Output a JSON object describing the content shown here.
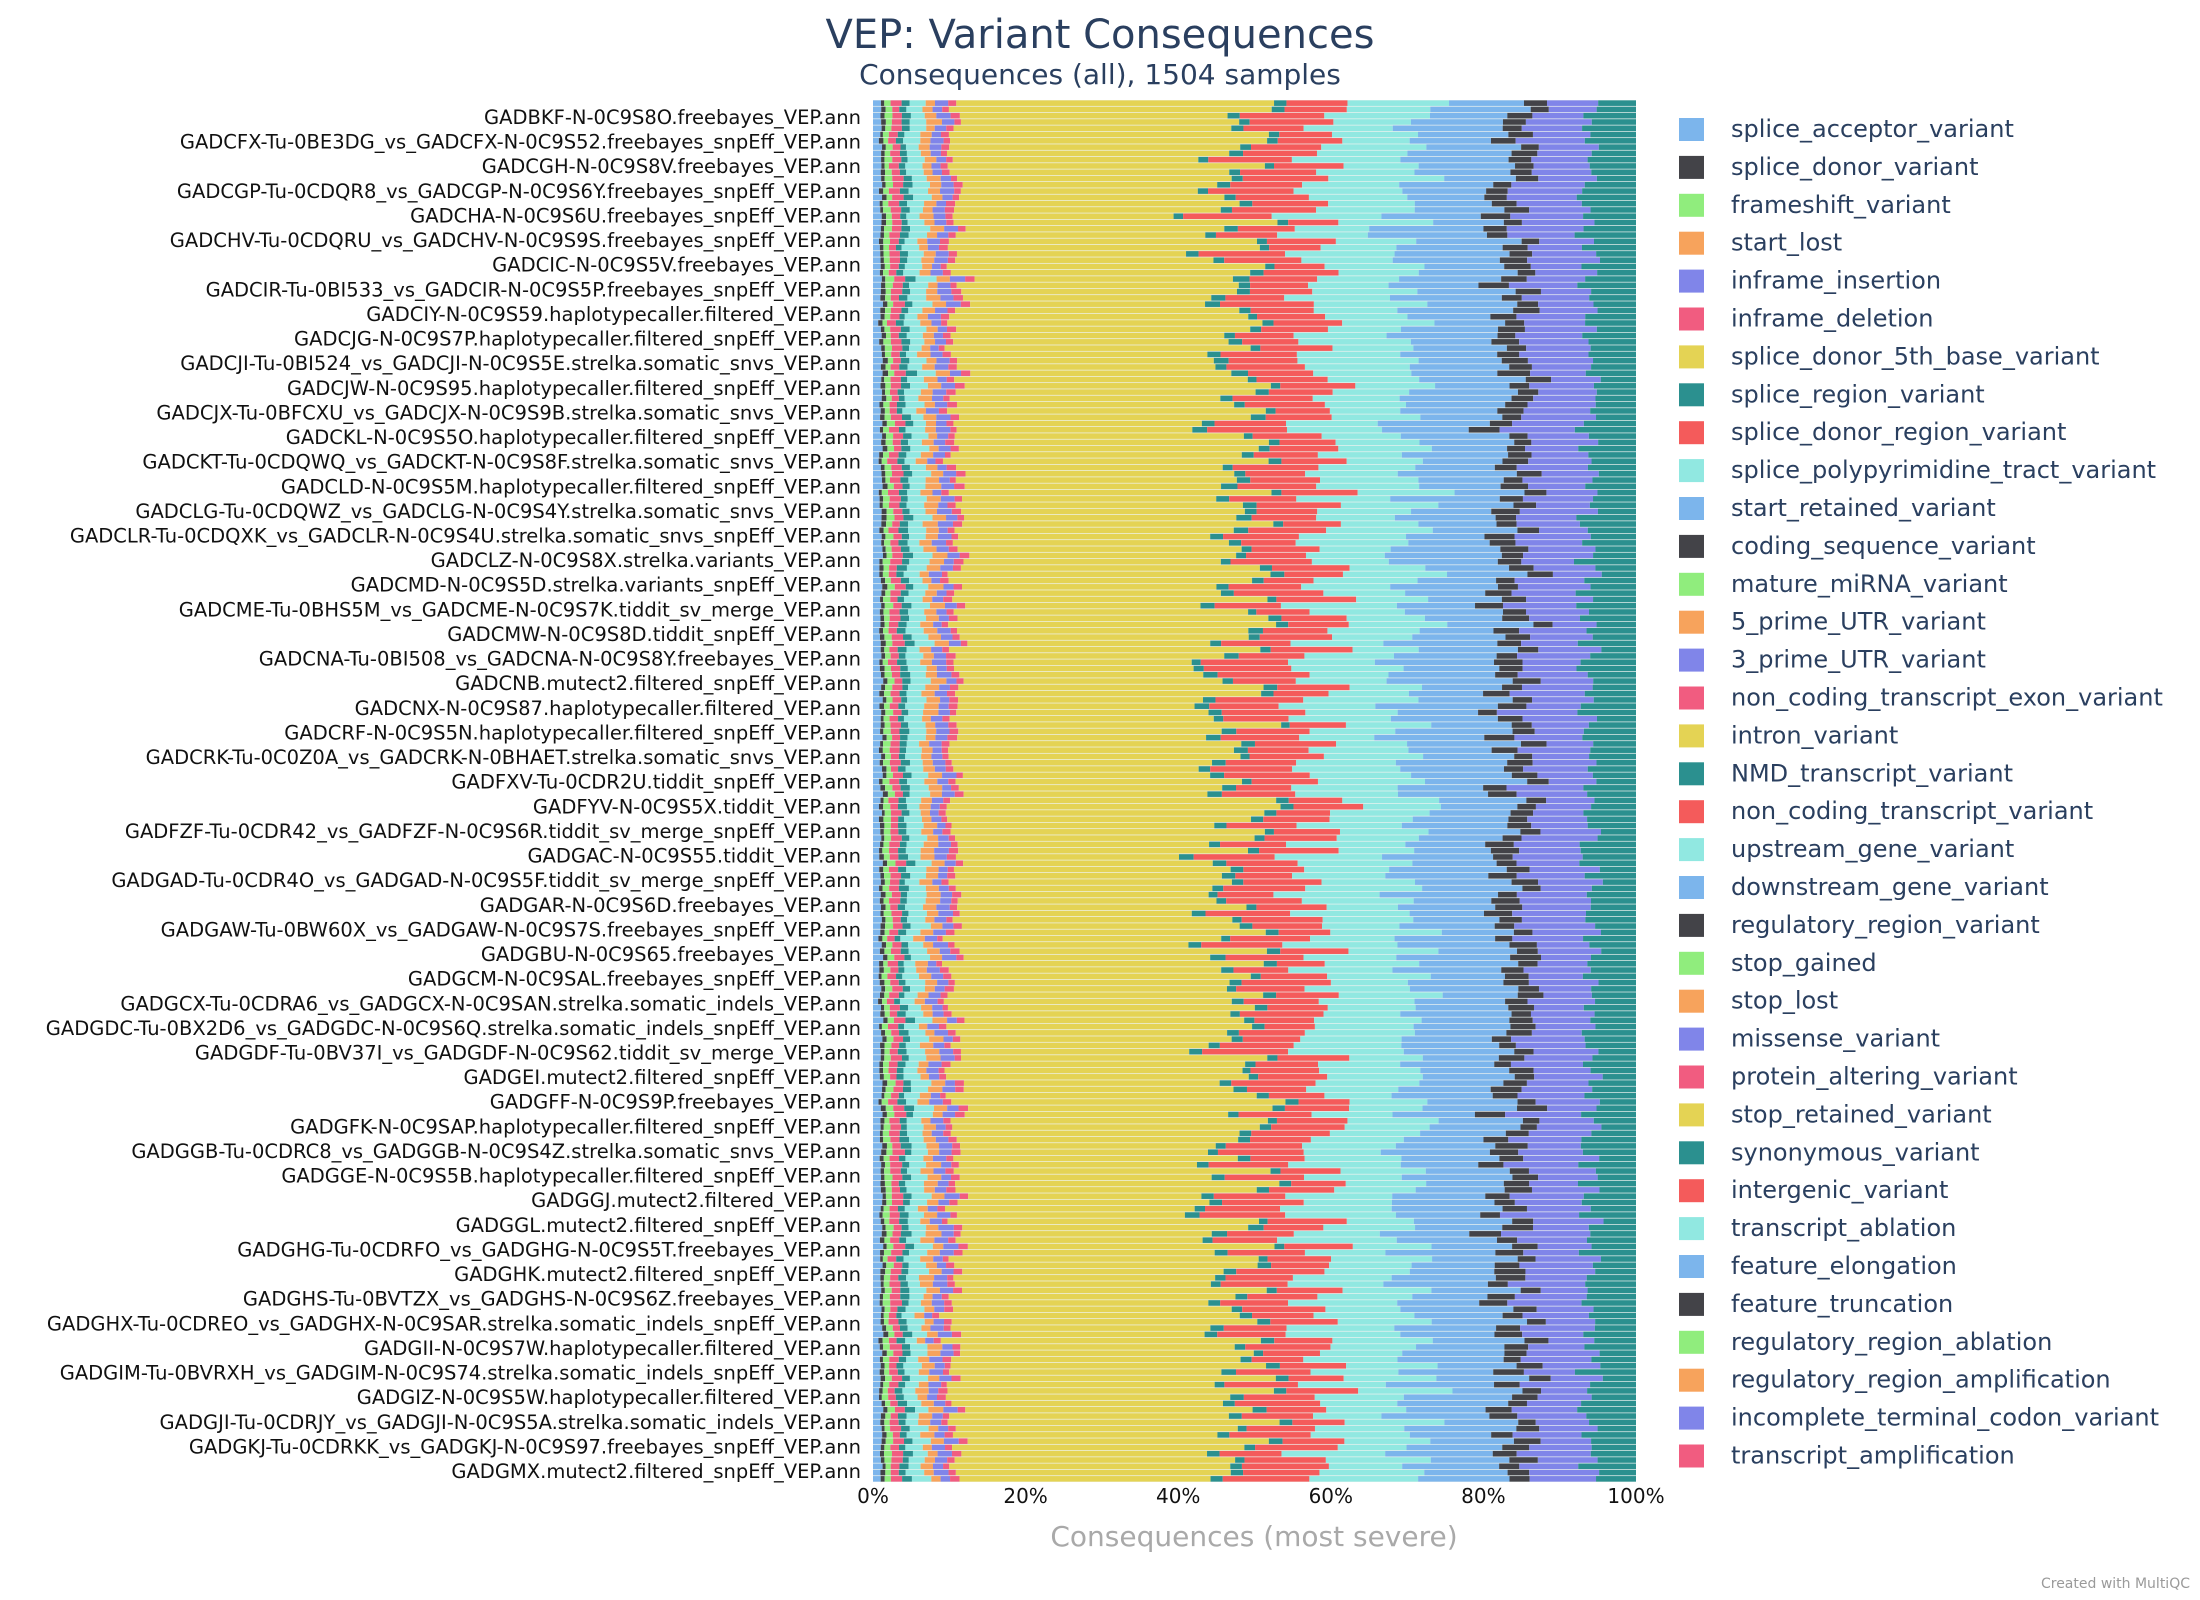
{
  "chart_data": {
    "type": "bar",
    "orientation": "horizontal",
    "stacked": "percent",
    "title": "VEP: Variant Consequences",
    "subtitle": "Consequences (all), 1504 samples",
    "xlabel": "Consequences (most severe)",
    "xlim": [
      0,
      100
    ],
    "x_ticks": [
      "0%",
      "20%",
      "40%",
      "60%",
      "80%",
      "100%"
    ],
    "credit": "Created with MultiQC",
    "legend_position": "right",
    "sample_labels": [
      "GADBKF-N-0C9S8O.freebayes_VEP.ann",
      "GADCFX-Tu-0BE3DG_vs_GADCFX-N-0C9S52.freebayes_snpEff_VEP.ann",
      "GADCGH-N-0C9S8V.freebayes_VEP.ann",
      "GADCGP-Tu-0CDQR8_vs_GADCGP-N-0C9S6Y.freebayes_snpEff_VEP.ann",
      "GADCHA-N-0C9S6U.freebayes_snpEff_VEP.ann",
      "GADCHV-Tu-0CDQRU_vs_GADCHV-N-0C9S9S.freebayes_snpEff_VEP.ann",
      "GADCIC-N-0C9S5V.freebayes_VEP.ann",
      "GADCIR-Tu-0BI533_vs_GADCIR-N-0C9S5P.freebayes_snpEff_VEP.ann",
      "GADCIY-N-0C9S59.haplotypecaller.filtered_VEP.ann",
      "GADCJG-N-0C9S7P.haplotypecaller.filtered_snpEff_VEP.ann",
      "GADCJI-Tu-0BI524_vs_GADCJI-N-0C9S5E.strelka.somatic_snvs_VEP.ann",
      "GADCJW-N-0C9S95.haplotypecaller.filtered_snpEff_VEP.ann",
      "GADCJX-Tu-0BFCXU_vs_GADCJX-N-0C9S9B.strelka.somatic_snvs_VEP.ann",
      "GADCKL-N-0C9S5O.haplotypecaller.filtered_snpEff_VEP.ann",
      "GADCKT-Tu-0CDQWQ_vs_GADCKT-N-0C9S8F.strelka.somatic_snvs_VEP.ann",
      "GADCLD-N-0C9S5M.haplotypecaller.filtered_snpEff_VEP.ann",
      "GADCLG-Tu-0CDQWZ_vs_GADCLG-N-0C9S4Y.strelka.somatic_snvs_VEP.ann",
      "GADCLR-Tu-0CDQXK_vs_GADCLR-N-0C9S4U.strelka.somatic_snvs_snpEff_VEP.ann",
      "GADCLZ-N-0C9S8X.strelka.variants_VEP.ann",
      "GADCMD-N-0C9S5D.strelka.variants_snpEff_VEP.ann",
      "GADCME-Tu-0BHS5M_vs_GADCME-N-0C9S7K.tiddit_sv_merge_VEP.ann",
      "GADCMW-N-0C9S8D.tiddit_snpEff_VEP.ann",
      "GADCNA-Tu-0BI508_vs_GADCNA-N-0C9S8Y.freebayes_VEP.ann",
      "GADCNB.mutect2.filtered_snpEff_VEP.ann",
      "GADCNX-N-0C9S87.haplotypecaller.filtered_VEP.ann",
      "GADCRF-N-0C9S5N.haplotypecaller.filtered_snpEff_VEP.ann",
      "GADCRK-Tu-0C0Z0A_vs_GADCRK-N-0BHAET.strelka.somatic_snvs_VEP.ann",
      "GADFXV-Tu-0CDR2U.tiddit_snpEff_VEP.ann",
      "GADFYV-N-0C9S5X.tiddit_VEP.ann",
      "GADFZF-Tu-0CDR42_vs_GADFZF-N-0C9S6R.tiddit_sv_merge_snpEff_VEP.ann",
      "GADGAC-N-0C9S55.tiddit_VEP.ann",
      "GADGAD-Tu-0CDR4O_vs_GADGAD-N-0C9S5F.tiddit_sv_merge_snpEff_VEP.ann",
      "GADGAR-N-0C9S6D.freebayes_VEP.ann",
      "GADGAW-Tu-0BW60X_vs_GADGAW-N-0C9S7S.freebayes_snpEff_VEP.ann",
      "GADGBU-N-0C9S65.freebayes_VEP.ann",
      "GADGCM-N-0C9SAL.freebayes_snpEff_VEP.ann",
      "GADGCX-Tu-0CDRA6_vs_GADGCX-N-0C9SAN.strelka.somatic_indels_VEP.ann",
      "GADGDC-Tu-0BX2D6_vs_GADGDC-N-0C9S6Q.strelka.somatic_indels_snpEff_VEP.ann",
      "GADGDF-Tu-0BV37I_vs_GADGDF-N-0C9S62.tiddit_sv_merge_VEP.ann",
      "GADGEI.mutect2.filtered_snpEff_VEP.ann",
      "GADGFF-N-0C9S9P.freebayes_VEP.ann",
      "GADGFK-N-0C9SAP.haplotypecaller.filtered_snpEff_VEP.ann",
      "GADGGB-Tu-0CDRC8_vs_GADGGB-N-0C9S4Z.strelka.somatic_snvs_VEP.ann",
      "GADGGE-N-0C9S5B.haplotypecaller.filtered_snpEff_VEP.ann",
      "GADGGJ.mutect2.filtered_VEP.ann",
      "GADGGL.mutect2.filtered_snpEff_VEP.ann",
      "GADGHG-Tu-0CDRFO_vs_GADGHG-N-0C9S5T.freebayes_VEP.ann",
      "GADGHK.mutect2.filtered_snpEff_VEP.ann",
      "GADGHS-Tu-0BVTZX_vs_GADGHS-N-0C9S6Z.freebayes_VEP.ann",
      "GADGHX-Tu-0CDREO_vs_GADGHX-N-0C9SAR.strelka.somatic_indels_snpEff_VEP.ann",
      "GADGII-N-0C9S7W.haplotypecaller.filtered_VEP.ann",
      "GADGIM-Tu-0BVRXH_vs_GADGIM-N-0C9S74.strelka.somatic_indels_snpEff_VEP.ann",
      "GADGIZ-N-0C9S5W.haplotypecaller.filtered_VEP.ann",
      "GADGJI-Tu-0CDRJY_vs_GADGJI-N-0C9S5A.strelka.somatic_indels_VEP.ann",
      "GADGKJ-Tu-0CDRKK_vs_GADGKJ-N-0C9S97.freebayes_snpEff_VEP.ann",
      "GADGMX.mutect2.filtered_snpEff_VEP.ann"
    ],
    "series": [
      {
        "name": "splice_acceptor_variant",
        "color": "#7cb5ec"
      },
      {
        "name": "splice_donor_variant",
        "color": "#434348"
      },
      {
        "name": "frameshift_variant",
        "color": "#90ed7d"
      },
      {
        "name": "start_lost",
        "color": "#f7a35c"
      },
      {
        "name": "inframe_insertion",
        "color": "#8085e9"
      },
      {
        "name": "inframe_deletion",
        "color": "#f15c80"
      },
      {
        "name": "splice_donor_5th_base_variant",
        "color": "#e4d354"
      },
      {
        "name": "splice_region_variant",
        "color": "#2b908f"
      },
      {
        "name": "splice_donor_region_variant",
        "color": "#f45b5b"
      },
      {
        "name": "splice_polypyrimidine_tract_variant",
        "color": "#91e8e1"
      },
      {
        "name": "start_retained_variant",
        "color": "#7cb5ec"
      },
      {
        "name": "coding_sequence_variant",
        "color": "#434348"
      },
      {
        "name": "mature_miRNA_variant",
        "color": "#90ed7d"
      },
      {
        "name": "5_prime_UTR_variant",
        "color": "#f7a35c"
      },
      {
        "name": "3_prime_UTR_variant",
        "color": "#8085e9"
      },
      {
        "name": "non_coding_transcript_exon_variant",
        "color": "#f15c80"
      },
      {
        "name": "intron_variant",
        "color": "#e4d354"
      },
      {
        "name": "NMD_transcript_variant",
        "color": "#2b908f"
      },
      {
        "name": "non_coding_transcript_variant",
        "color": "#f45b5b"
      },
      {
        "name": "upstream_gene_variant",
        "color": "#91e8e1"
      },
      {
        "name": "downstream_gene_variant",
        "color": "#7cb5ec"
      },
      {
        "name": "regulatory_region_variant",
        "color": "#434348"
      },
      {
        "name": "stop_gained",
        "color": "#90ed7d"
      },
      {
        "name": "stop_lost",
        "color": "#f7a35c"
      },
      {
        "name": "missense_variant",
        "color": "#8085e9"
      },
      {
        "name": "protein_altering_variant",
        "color": "#f15c80"
      },
      {
        "name": "stop_retained_variant",
        "color": "#e4d354"
      },
      {
        "name": "synonymous_variant",
        "color": "#2b908f"
      },
      {
        "name": "intergenic_variant",
        "color": "#f45b5b"
      },
      {
        "name": "transcript_ablation",
        "color": "#91e8e1"
      },
      {
        "name": "feature_elongation",
        "color": "#7cb5ec"
      },
      {
        "name": "feature_truncation",
        "color": "#434348"
      },
      {
        "name": "regulatory_region_ablation",
        "color": "#90ed7d"
      },
      {
        "name": "regulatory_region_amplification",
        "color": "#f7a35c"
      },
      {
        "name": "incomplete_terminal_codon_variant",
        "color": "#8085e9"
      },
      {
        "name": "transcript_amplification",
        "color": "#f15c80"
      }
    ],
    "typical_composition_percent": [
      {
        "name": "splice_acceptor_variant",
        "value": 1
      },
      {
        "name": "splice_donor_variant",
        "value": 0.5
      },
      {
        "name": "frameshift_variant",
        "value": 0.8
      },
      {
        "name": "inframe_deletion",
        "value": 1.2
      },
      {
        "name": "splice_region_variant",
        "value": 1
      },
      {
        "name": "splice_polypyrimidine_tract_variant",
        "value": 2
      },
      {
        "name": "5_prime_UTR_variant",
        "value": 1.5
      },
      {
        "name": "3_prime_UTR_variant",
        "value": 1.5
      },
      {
        "name": "non_coding_transcript_exon_variant",
        "value": 1
      },
      {
        "name": "intron_variant",
        "value": 37
      },
      {
        "name": "NMD_transcript_variant",
        "value": 1.5
      },
      {
        "name": "non_coding_transcript_variant",
        "value": 9
      },
      {
        "name": "upstream_gene_variant",
        "value": 12
      },
      {
        "name": "downstream_gene_variant",
        "value": 12
      },
      {
        "name": "regulatory_region_variant",
        "value": 3
      },
      {
        "name": "missense_variant",
        "value": 8
      },
      {
        "name": "synonymous_variant",
        "value": 6
      }
    ]
  }
}
